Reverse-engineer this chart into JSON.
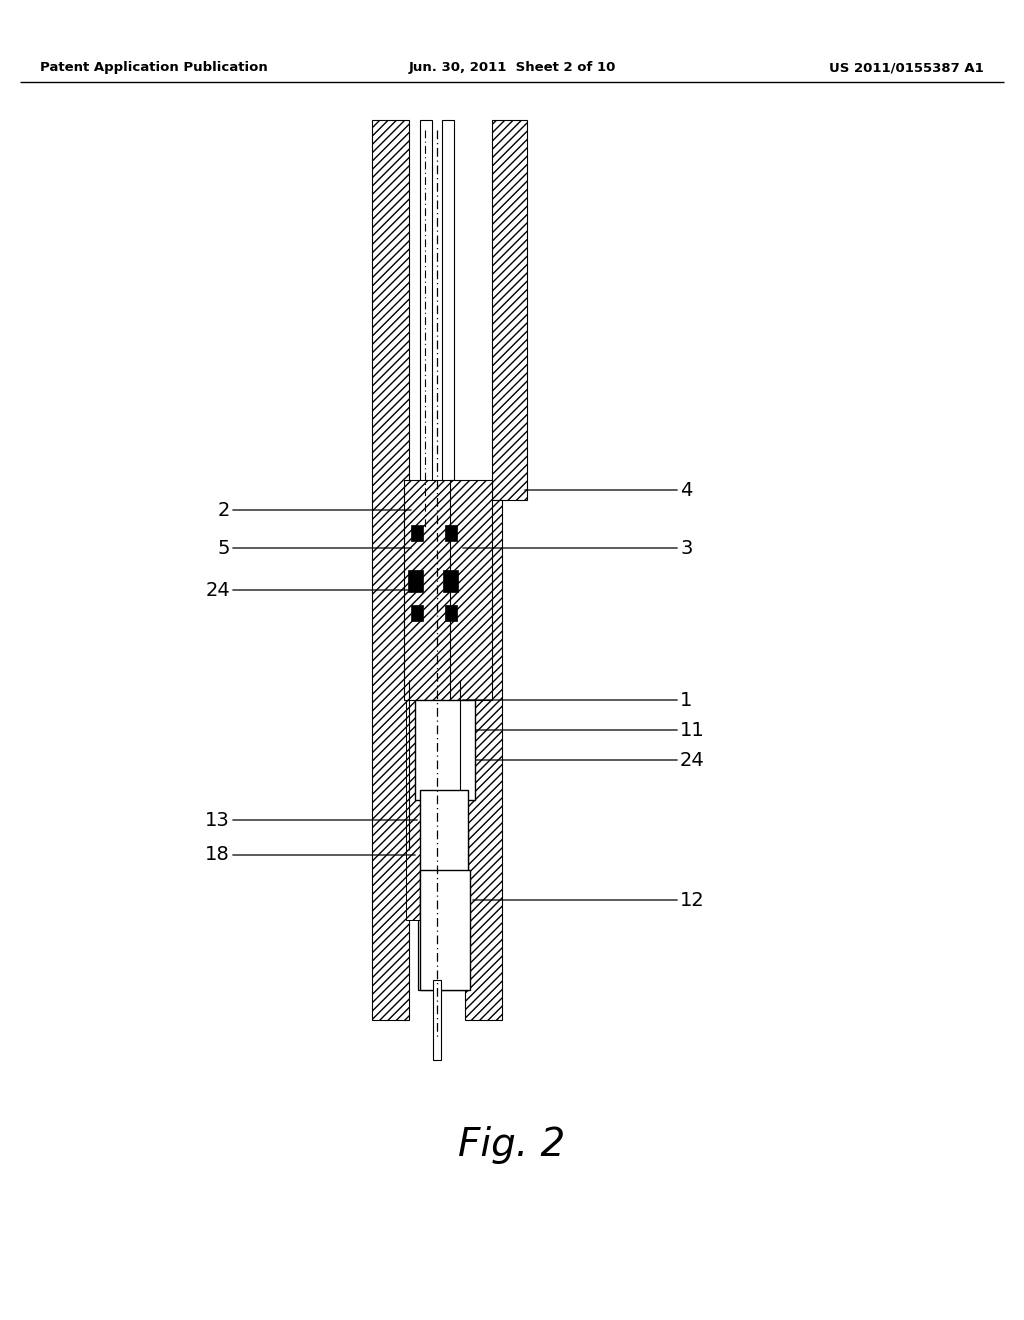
{
  "background_color": "#ffffff",
  "header_left": "Patent Application Publication",
  "header_center": "Jun. 30, 2011  Sheet 2 of 10",
  "header_right": "US 2011/0155387 A1",
  "figure_label": "Fig. 2"
}
